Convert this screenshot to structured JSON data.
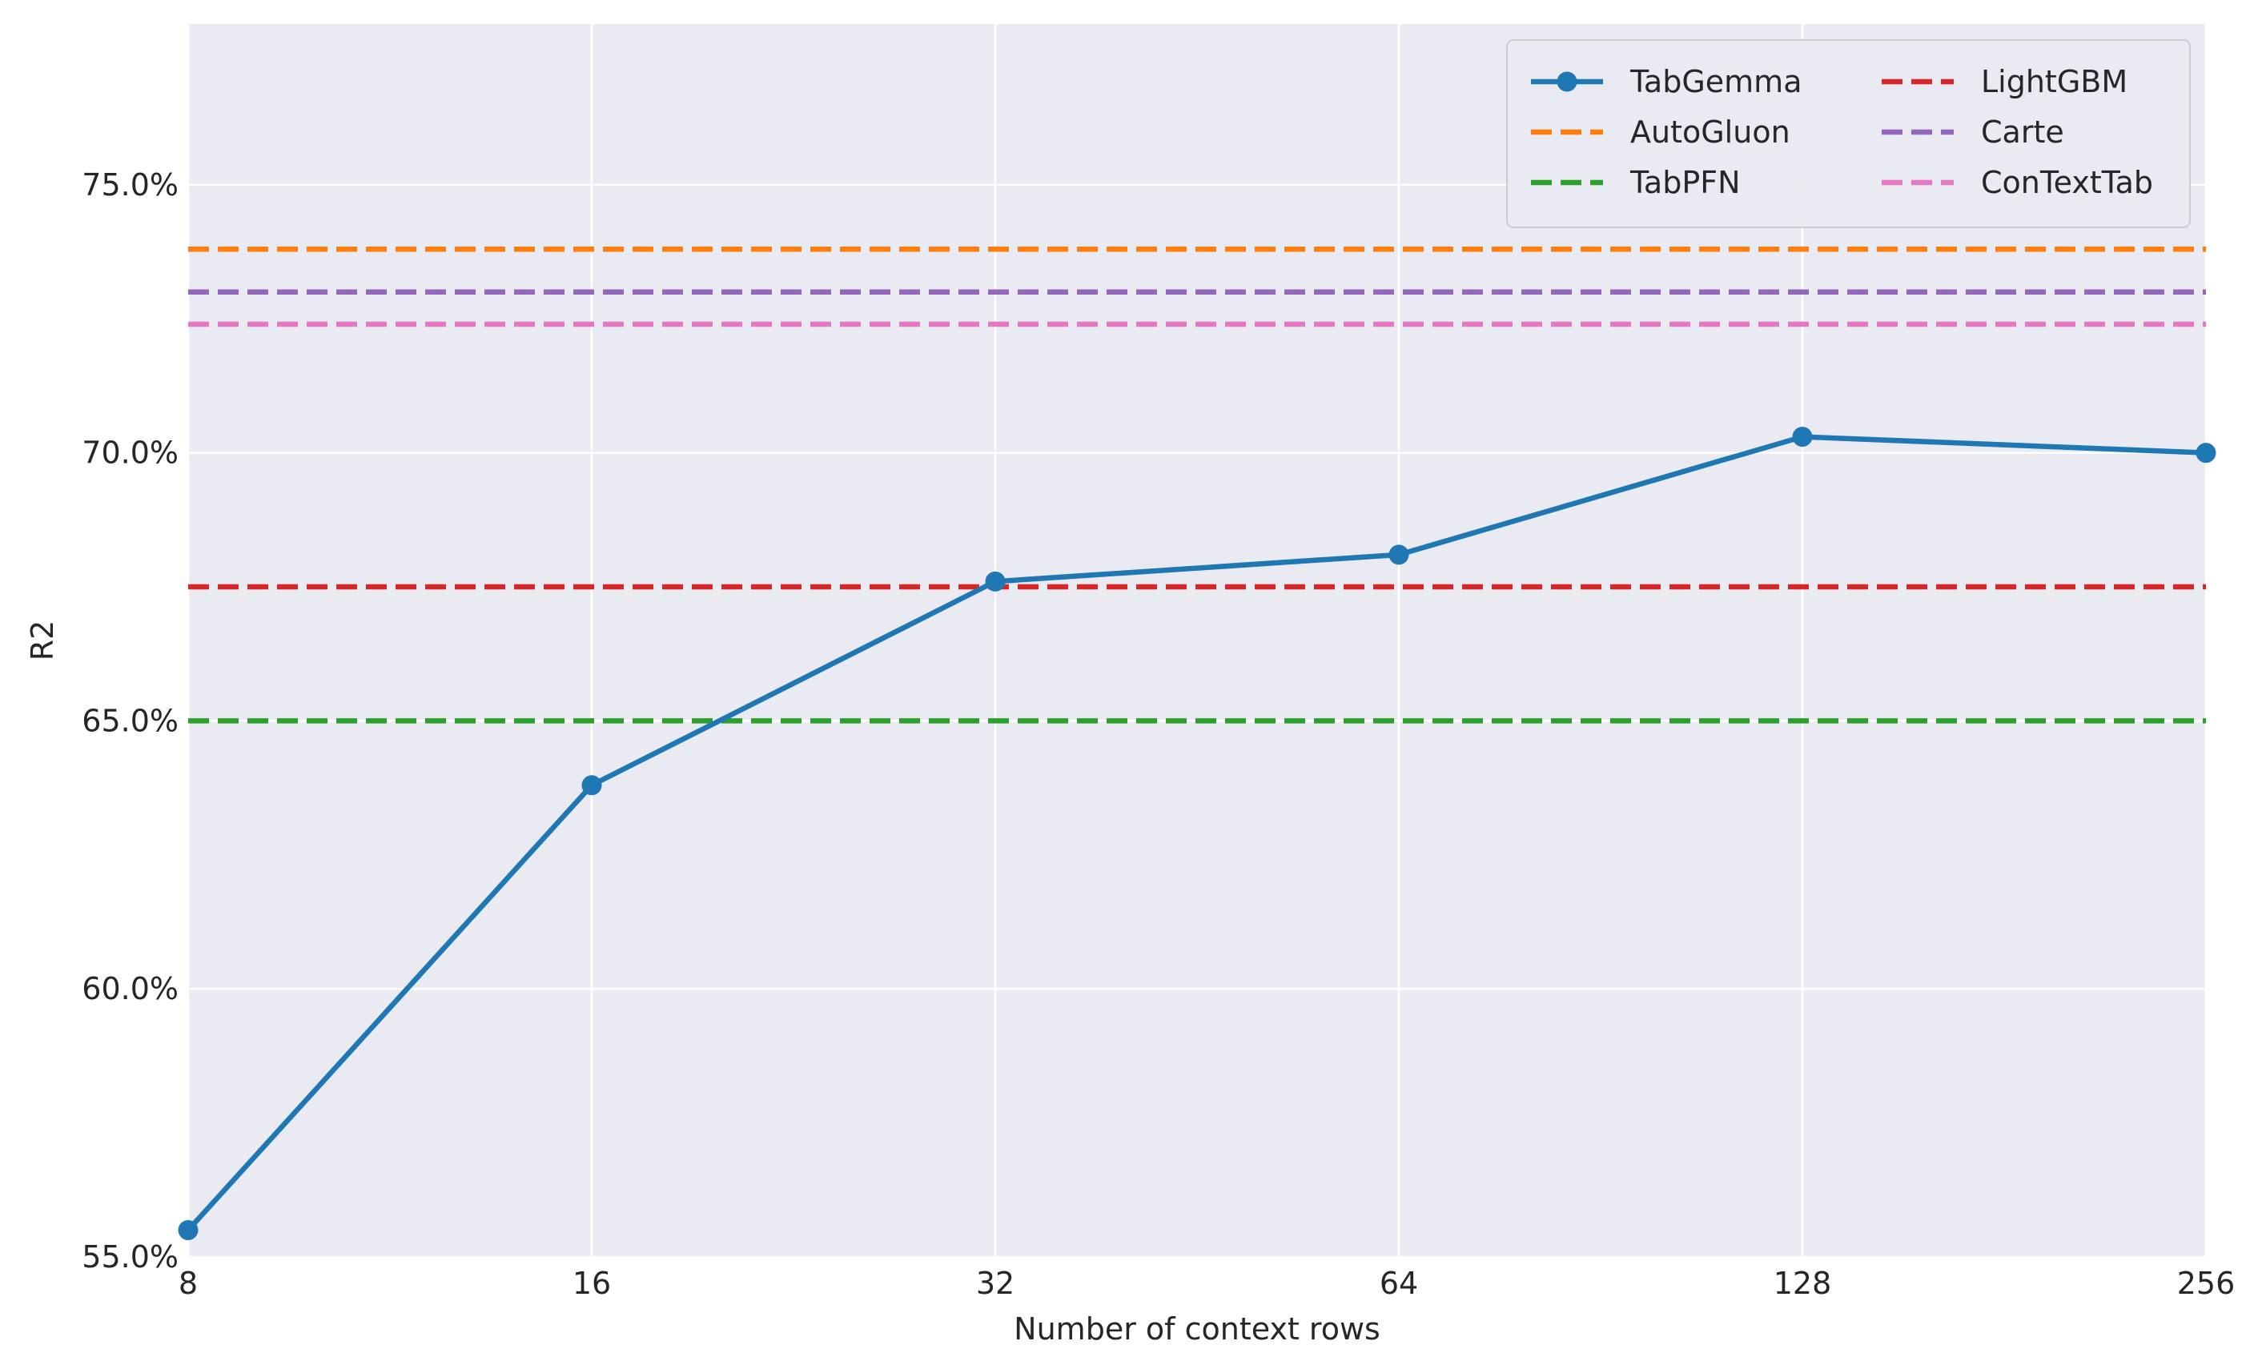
{
  "chart_data": {
    "type": "line",
    "xlabel": "Number of context rows",
    "ylabel": "R2",
    "x_scale": "log2",
    "x": [
      8,
      16,
      32,
      64,
      128,
      256
    ],
    "x_tick_labels": [
      "8",
      "16",
      "32",
      "64",
      "128",
      "256"
    ],
    "xlim": [
      8,
      256
    ],
    "ylim": [
      55.0,
      78.0
    ],
    "y_ticks": [
      55.0,
      60.0,
      65.0,
      70.0,
      75.0
    ],
    "y_tick_labels": [
      "55.0%",
      "60.0%",
      "65.0%",
      "70.0%",
      "75.0%"
    ],
    "grid": true,
    "legend_position": "top-right",
    "legend_columns": 2,
    "series": [
      {
        "name": "TabGemma",
        "style": "solid-marker",
        "color": "#1f77b4",
        "values": [
          55.5,
          63.8,
          67.6,
          68.1,
          70.3,
          70.0
        ]
      },
      {
        "name": "AutoGluon",
        "style": "dashed",
        "color": "#ff7f0e",
        "value": 73.8
      },
      {
        "name": "TabPFN",
        "style": "dashed",
        "color": "#2ca02c",
        "value": 65.0
      },
      {
        "name": "LightGBM",
        "style": "dashed",
        "color": "#d62728",
        "value": 67.5
      },
      {
        "name": "Carte",
        "style": "dashed",
        "color": "#9467bd",
        "value": 73.0
      },
      {
        "name": "ConTextTab",
        "style": "dashed",
        "color": "#e377c2",
        "value": 72.4
      }
    ]
  }
}
